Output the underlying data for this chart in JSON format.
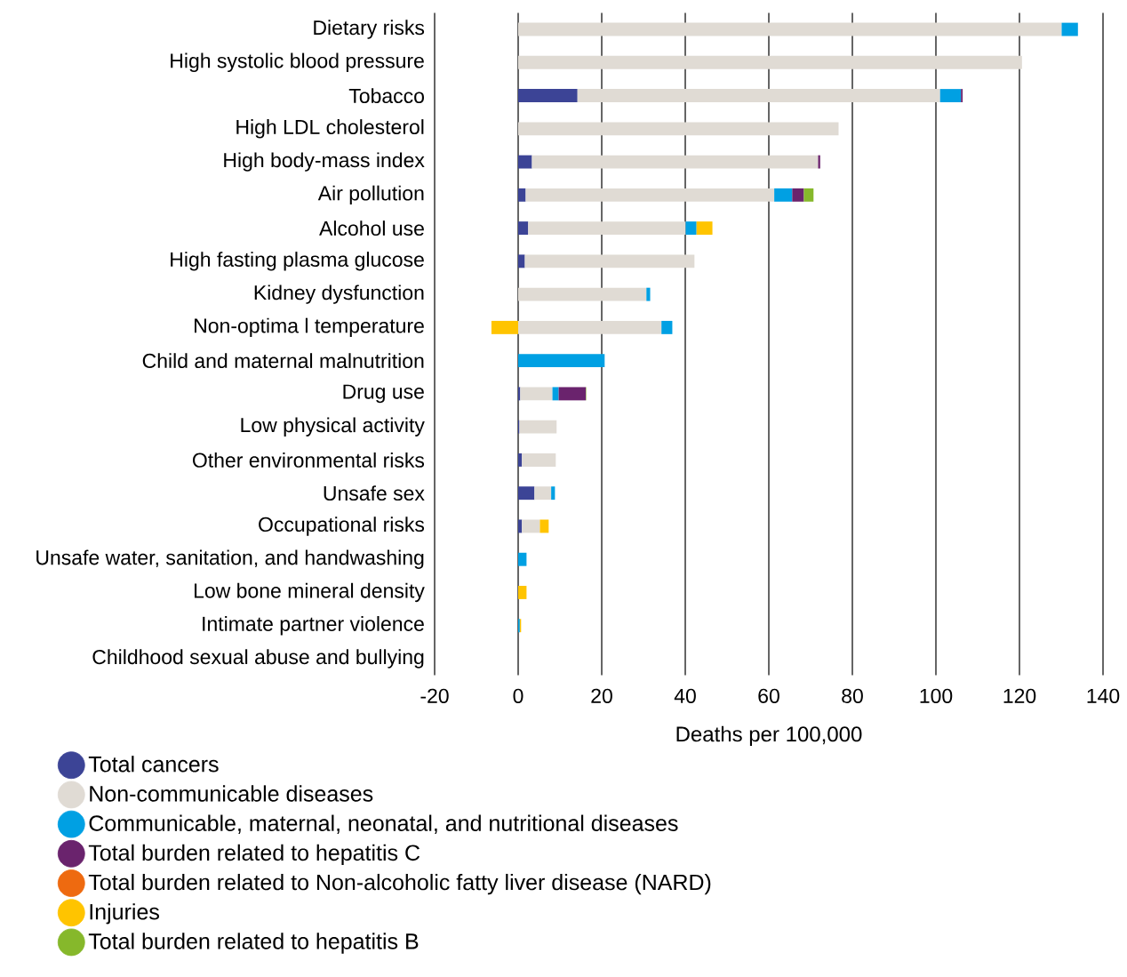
{
  "chart_data": {
    "type": "bar",
    "orientation": "horizontal",
    "stacked": true,
    "xlabel": "Deaths per 100,000",
    "categories": [
      "Dietary risks",
      "High systolic blood pressure",
      "Tobacco",
      "High LDL cholesterol",
      "High body-mass index",
      "Air pollution",
      "Alcohol use",
      "High fasting plasma glucose",
      "Kidney dysfunction",
      "Non-optima l temperature",
      "Child and maternal malnutrition",
      "Drug use",
      "Low physical activity",
      "Other environmental risks",
      "Unsafe sex",
      "Occupational risks",
      "Unsafe water, sanitation, and handwashing",
      "Low bone mineral density",
      "Intimate partner violence",
      "Childhood sexual abuse and bullying"
    ],
    "series": [
      {
        "name": "Total cancers",
        "color": "#3c4496",
        "values": [
          null,
          null,
          14.2,
          null,
          3.3,
          1.8,
          2.4,
          1.6,
          null,
          null,
          null,
          0.5,
          0.3,
          0.9,
          3.9,
          0.9,
          null,
          null,
          null,
          null
        ]
      },
      {
        "name": "Non-communicable diseases",
        "color": "#e0dbd4",
        "values": [
          130.1,
          120.6,
          86.8,
          76.7,
          68.5,
          59.5,
          37.7,
          40.6,
          30.7,
          34.3,
          null,
          7.7,
          8.9,
          8.1,
          4.0,
          4.3,
          null,
          null,
          null,
          null
        ]
      },
      {
        "name": "Communicable, maternal, neonatal, and nutritional diseases",
        "color": "#00a0e3",
        "values": [
          3.9,
          null,
          5.0,
          null,
          null,
          4.3,
          2.6,
          null,
          0.9,
          2.6,
          20.7,
          1.5,
          null,
          null,
          0.9,
          null,
          2.0,
          null,
          0.4,
          null
        ]
      },
      {
        "name": "Total burden related to hepatitis C",
        "color": "#6a236d",
        "values": [
          null,
          null,
          0.4,
          null,
          0.5,
          2.8,
          null,
          null,
          null,
          null,
          null,
          6.5,
          null,
          null,
          null,
          null,
          null,
          null,
          null,
          null
        ]
      },
      {
        "name": "Total burden related to Non-alcoholic fatty liver disease (NARD)",
        "color": "#ee6a10",
        "values": [
          null,
          null,
          null,
          null,
          null,
          null,
          null,
          null,
          null,
          null,
          null,
          null,
          null,
          null,
          null,
          null,
          null,
          null,
          null,
          null
        ]
      },
      {
        "name": "Injuries",
        "color": "#ffc400",
        "values": [
          null,
          null,
          null,
          null,
          null,
          null,
          3.8,
          null,
          null,
          -6.4,
          null,
          null,
          null,
          null,
          null,
          2.1,
          null,
          2.0,
          0.3,
          null
        ]
      },
      {
        "name": "Total burden related to hepatitis B",
        "color": "#86b82b",
        "values": [
          null,
          null,
          null,
          null,
          null,
          2.3,
          null,
          null,
          null,
          null,
          null,
          0.1,
          null,
          null,
          null,
          null,
          null,
          null,
          null,
          null
        ]
      }
    ],
    "xlim": [
      -20,
      140
    ],
    "xticks": [
      -20,
      0,
      20,
      40,
      60,
      80,
      100,
      120,
      140
    ],
    "grid": "x",
    "legend": "bottom left"
  }
}
